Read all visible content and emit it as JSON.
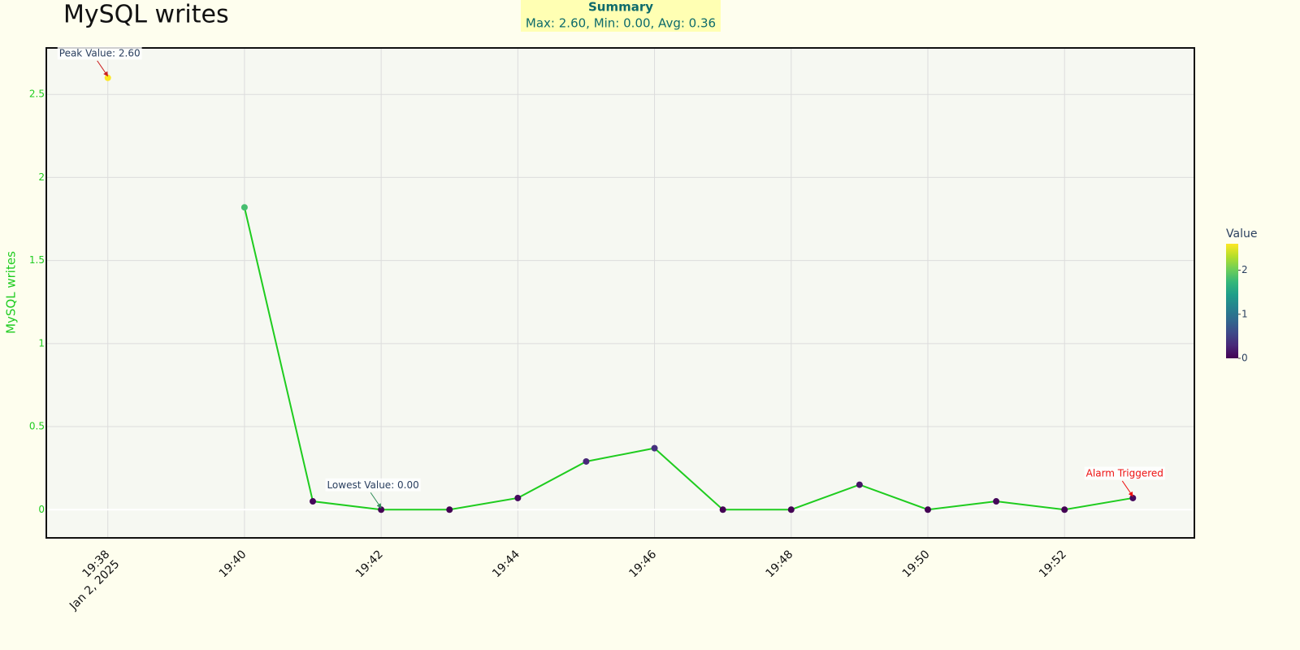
{
  "chart_data": {
    "type": "line",
    "title": "MySQL writes",
    "y_label": "MySQL writes",
    "summary": {
      "title": "Summary",
      "text": "Max: 2.60, Min: 0.00, Avg: 0.36"
    },
    "x": [
      "2025-01-02 19:38",
      "2025-01-02 19:39",
      "2025-01-02 19:40",
      "2025-01-02 19:41",
      "2025-01-02 19:42",
      "2025-01-02 19:43",
      "2025-01-02 19:44",
      "2025-01-02 19:45",
      "2025-01-02 19:46",
      "2025-01-02 19:47",
      "2025-01-02 19:48",
      "2025-01-02 19:49",
      "2025-01-02 19:50",
      "2025-01-02 19:51",
      "2025-01-02 19:52",
      "2025-01-02 19:53"
    ],
    "series": [
      {
        "name": "MySQL writes",
        "color": "#1fcc1f",
        "values": [
          2.6,
          null,
          1.82,
          0.05,
          0,
          0,
          0.07,
          0.29,
          0.37,
          0,
          0,
          0.15,
          0,
          0.05,
          0,
          0.07
        ]
      }
    ],
    "xlim": [
      "2025-01-02 19:37:06",
      "2025-01-02 19:53:54"
    ],
    "xticks": [
      {
        "value": "2025-01-02 19:38",
        "label": "19:38"
      },
      {
        "value": "2025-01-02 19:40",
        "label": "19:40"
      },
      {
        "value": "2025-01-02 19:42",
        "label": "19:42"
      },
      {
        "value": "2025-01-02 19:44",
        "label": "19:44"
      },
      {
        "value": "2025-01-02 19:46",
        "label": "19:46"
      },
      {
        "value": "2025-01-02 19:48",
        "label": "19:48"
      },
      {
        "value": "2025-01-02 19:50",
        "label": "19:50"
      },
      {
        "value": "2025-01-02 19:52",
        "label": "19:52"
      }
    ],
    "x_date_label": "Jan 2, 2025",
    "ylim": [
      -0.17,
      2.78
    ],
    "yticks": [
      0,
      0.5,
      1,
      1.5,
      2,
      2.5
    ],
    "grid": true,
    "colorscale": [
      "#440154",
      "#482878",
      "#3e4989",
      "#31688e",
      "#26828e",
      "#1f9e89",
      "#35b779",
      "#6ece58",
      "#b5de2b",
      "#fde725"
    ],
    "colorbar": {
      "title": "Value",
      "lim": [
        0,
        2.6
      ],
      "ticks": [
        0,
        1,
        2
      ]
    },
    "annotations": [
      {
        "text": "Peak Value: 2.60",
        "x": "2025-01-02 19:38",
        "color": "#cc2222",
        "text_color": "#2a3f5f"
      },
      {
        "text": "Lowest Value: 0.00",
        "x": "2025-01-02 19:42",
        "color": "#2e8b57",
        "text_color": "#2a3f5f"
      },
      {
        "text": "Alarm Triggered",
        "x": "2025-01-02 19:53",
        "color": "#ee1111",
        "text_color": "#ee1111"
      }
    ]
  }
}
